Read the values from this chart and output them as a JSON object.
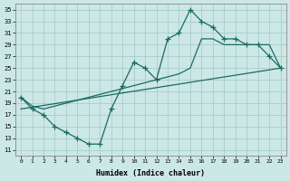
{
  "xlabel": "Humidex (Indice chaleur)",
  "bg_color": "#cce8e6",
  "grid_color": "#a8ccca",
  "line_color": "#1a6b62",
  "xlim": [
    -0.5,
    23.5
  ],
  "ylim": [
    10,
    36
  ],
  "xticks": [
    0,
    1,
    2,
    3,
    4,
    5,
    6,
    7,
    8,
    9,
    10,
    11,
    12,
    13,
    14,
    15,
    16,
    17,
    18,
    19,
    20,
    21,
    22,
    23
  ],
  "yticks": [
    11,
    13,
    15,
    17,
    19,
    21,
    23,
    25,
    27,
    29,
    31,
    33,
    35
  ],
  "line1_x": [
    0,
    1,
    2,
    3,
    4,
    5,
    6,
    7,
    8,
    9,
    10,
    11,
    12,
    13,
    14,
    15,
    16,
    17,
    18,
    19,
    20,
    21,
    22,
    23
  ],
  "line1_y": [
    20,
    18,
    17,
    15,
    14,
    13,
    12,
    12,
    18,
    22,
    26,
    25,
    23,
    30,
    31,
    35,
    33,
    32,
    30,
    30,
    29,
    29,
    27,
    25
  ],
  "line2_x": [
    0,
    1,
    2,
    10,
    14,
    15,
    16,
    17,
    18,
    19,
    20,
    21,
    22,
    23
  ],
  "line2_y": [
    20,
    18.5,
    18,
    22,
    24,
    25,
    30,
    30,
    29,
    29,
    29,
    29,
    29,
    25
  ],
  "line3_x": [
    0,
    23
  ],
  "line3_y": [
    18,
    25
  ]
}
